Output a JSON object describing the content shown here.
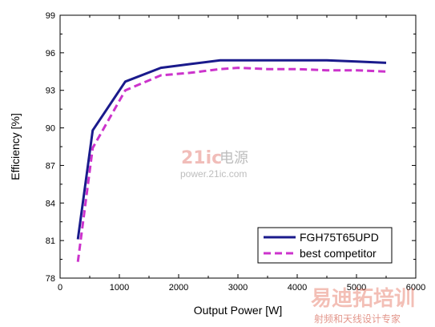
{
  "chart_data": {
    "type": "line",
    "xlabel": "Output Power [W]",
    "ylabel": "Efficiency [%]",
    "xlim": [
      0,
      6000
    ],
    "ylim": [
      78,
      99
    ],
    "xticks": [
      0,
      1000,
      2000,
      3000,
      4000,
      5000,
      6000
    ],
    "yticks": [
      78,
      81,
      84,
      87,
      90,
      93,
      96,
      99
    ],
    "grid": false,
    "legend_position": "bottom-right",
    "series": [
      {
        "name": "FGH75T65UPD",
        "color": "#1a1a8c",
        "style": "solid",
        "x": [
          300,
          550,
          1100,
          1700,
          2200,
          2700,
          3500,
          4000,
          4500,
          5000,
          5500
        ],
        "y": [
          81.1,
          89.8,
          93.7,
          94.8,
          95.1,
          95.4,
          95.4,
          95.4,
          95.4,
          95.3,
          95.2
        ]
      },
      {
        "name": "best competitor",
        "color": "#cc33cc",
        "style": "dashed",
        "x": [
          300,
          550,
          1100,
          1700,
          2200,
          2700,
          3000,
          3500,
          4000,
          4500,
          5000,
          5500
        ],
        "y": [
          79.3,
          88.4,
          93.0,
          94.2,
          94.4,
          94.7,
          94.8,
          94.7,
          94.7,
          94.6,
          94.6,
          94.5
        ]
      }
    ]
  },
  "watermark": {
    "brand_mark": "21ic",
    "brand_cn": "电源",
    "brand_url": "power.21ic.com",
    "site_cn": "易迪拓培训",
    "site_sub": "射频和天线设计专家"
  }
}
